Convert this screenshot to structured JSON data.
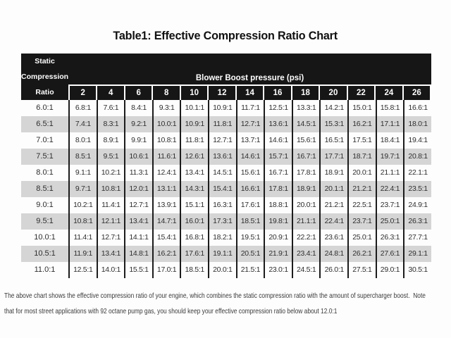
{
  "title": "Table1: Effective Compression Ratio Chart",
  "chart_data": {
    "type": "table",
    "title": "Table1: Effective Compression Ratio Chart",
    "row_header_lines": [
      "Static",
      "Compression",
      "Ratio"
    ],
    "column_group_label": "Blower Boost pressure (psi)",
    "columns_psi": [
      "2",
      "4",
      "6",
      "8",
      "10",
      "12",
      "14",
      "16",
      "18",
      "20",
      "22",
      "24",
      "26"
    ],
    "rows": [
      {
        "static_ratio": "6.0:1",
        "effective": [
          "6.8:1",
          "7.6:1",
          "8.4:1",
          "9.3:1",
          "10.1:1",
          "10.9:1",
          "11.7:1",
          "12.5:1",
          "13.3:1",
          "14.2:1",
          "15.0:1",
          "15.8:1",
          "16.6:1"
        ]
      },
      {
        "static_ratio": "6.5:1",
        "effective": [
          "7.4:1",
          "8.3:1",
          "9.2:1",
          "10.0:1",
          "10.9:1",
          "11.8:1",
          "12.7:1",
          "13.6:1",
          "14.5:1",
          "15.3:1",
          "16.2:1",
          "17.1:1",
          "18.0:1"
        ]
      },
      {
        "static_ratio": "7.0:1",
        "effective": [
          "8.0:1",
          "8.9:1",
          "9.9:1",
          "10.8:1",
          "11.8:1",
          "12.7:1",
          "13.7:1",
          "14.6:1",
          "15.6:1",
          "16.5:1",
          "17.5:1",
          "18.4:1",
          "19.4:1"
        ]
      },
      {
        "static_ratio": "7.5:1",
        "effective": [
          "8.5:1",
          "9.5:1",
          "10.6:1",
          "11.6:1",
          "12.6:1",
          "13.6:1",
          "14.6:1",
          "15.7:1",
          "16.7:1",
          "17.7:1",
          "18.7:1",
          "19.7:1",
          "20.8:1"
        ]
      },
      {
        "static_ratio": "8.0:1",
        "effective": [
          "9.1:1",
          "10.2:1",
          "11.3:1",
          "12.4:1",
          "13.4:1",
          "14.5:1",
          "15.6:1",
          "16.7:1",
          "17.8:1",
          "18.9:1",
          "20.0:1",
          "21.1:1",
          "22.1:1"
        ]
      },
      {
        "static_ratio": "8.5:1",
        "effective": [
          "9.7:1",
          "10.8:1",
          "12.0:1",
          "13.1:1",
          "14.3:1",
          "15.4:1",
          "16.6:1",
          "17.8:1",
          "18.9:1",
          "20.1:1",
          "21.2:1",
          "22.4:1",
          "23.5:1"
        ]
      },
      {
        "static_ratio": "9.0:1",
        "effective": [
          "10.2:1",
          "11.4:1",
          "12.7:1",
          "13.9:1",
          "15.1:1",
          "16.3:1",
          "17.6:1",
          "18.8:1",
          "20.0:1",
          "21.2:1",
          "22.5:1",
          "23.7:1",
          "24.9:1"
        ]
      },
      {
        "static_ratio": "9.5:1",
        "effective": [
          "10.8:1",
          "12.1:1",
          "13.4:1",
          "14.7:1",
          "16.0:1",
          "17.3:1",
          "18.5:1",
          "19.8:1",
          "21.1:1",
          "22.4:1",
          "23.7:1",
          "25.0:1",
          "26.3:1"
        ]
      },
      {
        "static_ratio": "10.0:1",
        "effective": [
          "11.4:1",
          "12.7:1",
          "14.1:1",
          "15.4:1",
          "16.8:1",
          "18.2:1",
          "19.5:1",
          "20.9:1",
          "22.2:1",
          "23.6:1",
          "25.0:1",
          "26.3:1",
          "27.7:1"
        ]
      },
      {
        "static_ratio": "10.5:1",
        "effective": [
          "11.9:1",
          "13.4:1",
          "14.8:1",
          "16.2:1",
          "17.6:1",
          "19.1:1",
          "20.5:1",
          "21.9:1",
          "23.4:1",
          "24.8:1",
          "26.2:1",
          "27.6:1",
          "29.1:1"
        ]
      },
      {
        "static_ratio": "11.0:1",
        "effective": [
          "12.5:1",
          "14.0:1",
          "15.5:1",
          "17.0:1",
          "18.5:1",
          "20.0:1",
          "21.5:1",
          "23.0:1",
          "24.5:1",
          "26.0:1",
          "27.5:1",
          "29.0:1",
          "30.5:1"
        ]
      }
    ],
    "shaded_rows": [
      "6.5:1",
      "7.5:1",
      "8.5:1",
      "9.5:1",
      "10.5:1"
    ]
  },
  "footnote_lines": [
    "The above chart shows the effective compression ratio of your engine, which combines the static compression ratio with the amount of supercharger boost.  Note",
    "that for most street applications with 92 octane pump gas, you should keep your effective compression ratio below about 12.0:1"
  ],
  "colors": {
    "header_bg": "#161616",
    "header_text": "#ffffff",
    "row_shade": "#d5d5d5",
    "grid_line": "#1c1c1c",
    "body_text": "#2e2e2e",
    "page_bg": "#fdfdfd"
  }
}
